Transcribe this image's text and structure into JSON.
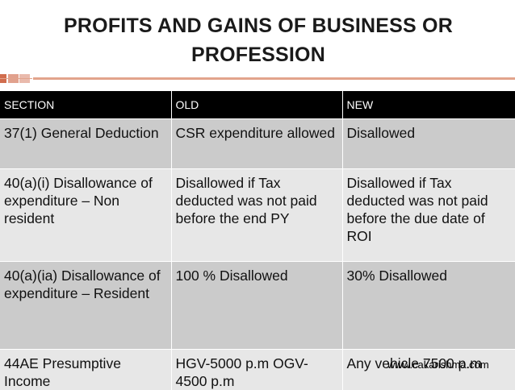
{
  "title": {
    "line1": "PROFITS AND GAINS OF BUSINESS OR",
    "line2": "PROFESSION"
  },
  "table": {
    "headers": [
      "SECTION",
      "OLD",
      "NEW"
    ],
    "rows": [
      [
        "37(1) General Deduction",
        "CSR expenditure allowed",
        "Disallowed"
      ],
      [
        "40(a)(i) Disallowance of expenditure – Non resident",
        "Disallowed if Tax deducted was not paid before the end PY",
        "Disallowed if Tax deducted was not paid before the due date of ROI"
      ],
      [
        "40(a)(ia) Disallowance of expenditure – Resident",
        "100 % Disallowed",
        "30% Disallowed"
      ],
      [
        "44AE Presumptive Income",
        "HGV-5000 p.m OGV-4500 p.m",
        "Any vehicle 7500 p.m"
      ]
    ]
  },
  "watermark": "www.cakarishma.com",
  "colors": {
    "accent": "#c9532f",
    "header_bg": "#000000",
    "row_dark": "#cbcbcb",
    "row_light": "#e7e7e7"
  }
}
